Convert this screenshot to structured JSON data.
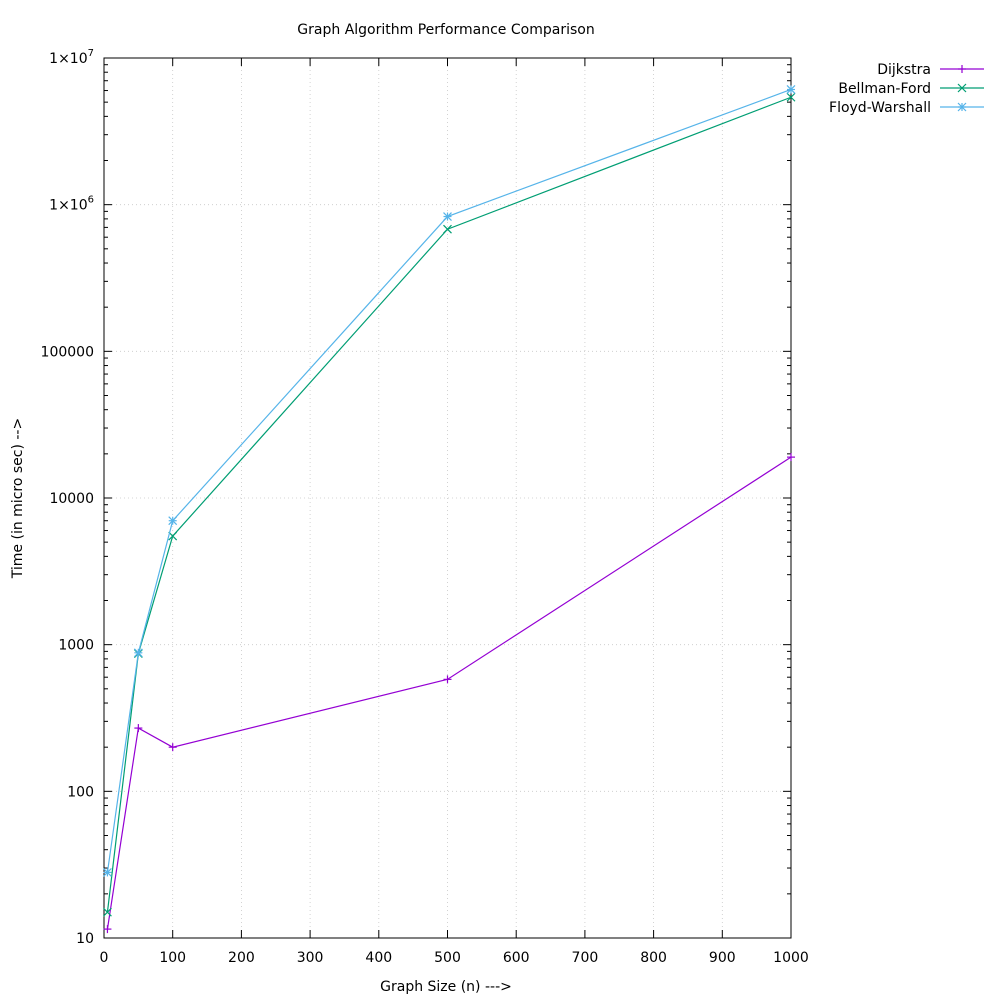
{
  "chart_data": {
    "type": "line",
    "title": "Graph Algorithm Performance Comparison",
    "xlabel": "Graph Size (n) --->",
    "ylabel": "Time (in micro sec) -->",
    "x_scale": "linear",
    "y_scale": "log",
    "xlim": [
      0,
      1000
    ],
    "ylim": [
      10,
      10000000
    ],
    "grid": true,
    "legend_position": "outside top-right",
    "x_ticks": [
      0,
      100,
      200,
      300,
      400,
      500,
      600,
      700,
      800,
      900,
      1000
    ],
    "x_tick_labels": [
      "0",
      "100",
      "200",
      "300",
      "400",
      "500",
      "600",
      "700",
      "800",
      "900",
      "1000"
    ],
    "y_ticks": [
      10,
      100,
      1000,
      10000,
      100000,
      1000000,
      10000000
    ],
    "y_tick_labels": [
      {
        "text": "10",
        "base": "",
        "exp": ""
      },
      {
        "text": "100",
        "base": "",
        "exp": ""
      },
      {
        "text": "1000",
        "base": "",
        "exp": ""
      },
      {
        "text": "10000",
        "base": "",
        "exp": ""
      },
      {
        "text": "100000",
        "base": "",
        "exp": ""
      },
      {
        "text": "",
        "base": "1×10",
        "exp": "6"
      },
      {
        "text": "",
        "base": "1×10",
        "exp": "7"
      }
    ],
    "x": [
      5,
      50,
      100,
      500,
      1000
    ],
    "series": [
      {
        "name": "Dijkstra",
        "color": "#9400d3",
        "marker": "plus",
        "values": [
          11.5,
          270,
          200,
          580,
          19000
        ]
      },
      {
        "name": "Bellman-Ford",
        "color": "#009e73",
        "marker": "cross",
        "values": [
          15,
          870,
          5500,
          680000,
          5400000
        ]
      },
      {
        "name": "Floyd-Warshall",
        "color": "#56b4e9",
        "marker": "star",
        "values": [
          28,
          880,
          7000,
          830000,
          6100000
        ]
      }
    ]
  }
}
